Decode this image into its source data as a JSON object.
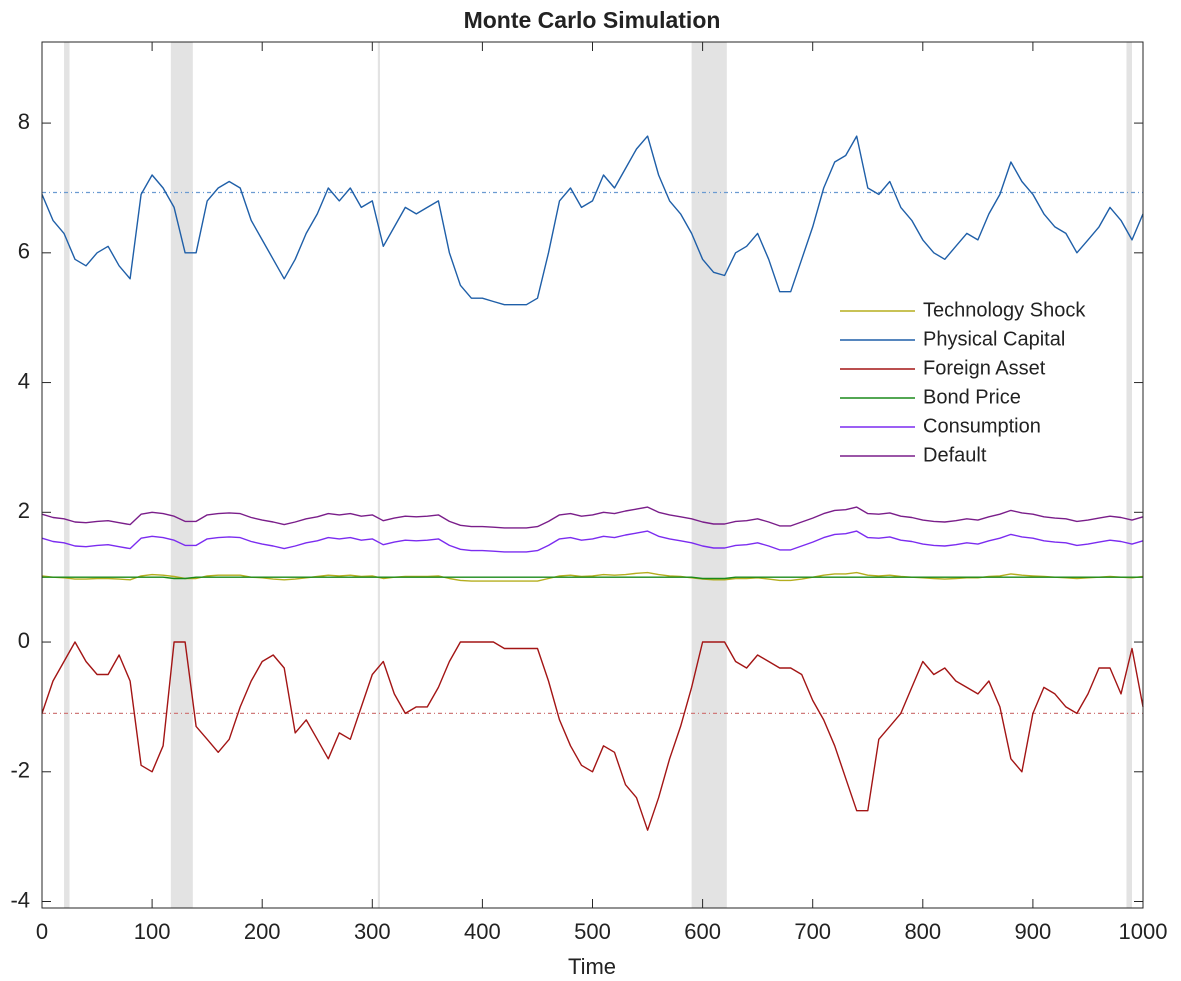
{
  "chart_data": {
    "type": "line",
    "title": "Monte Carlo Simulation",
    "x_label": "Time",
    "xlim": [
      0,
      1000
    ],
    "ylim": [
      -4.1,
      9.25
    ],
    "xticks": [
      0,
      100,
      200,
      300,
      400,
      500,
      600,
      700,
      800,
      900,
      1000
    ],
    "yticks": [
      -4,
      -2,
      0,
      2,
      4,
      6,
      8
    ],
    "legend_location": "east",
    "shade_color": "#e3e3e3",
    "shaded_regions": [
      [
        20,
        25
      ],
      [
        117,
        137
      ],
      [
        305,
        307
      ],
      [
        590,
        622
      ],
      [
        985,
        990
      ]
    ],
    "reference_lines": [
      {
        "value": 6.93,
        "color": "#6b9bd1"
      },
      {
        "value": -1.1,
        "color": "#d07a7a"
      }
    ],
    "x": [
      0,
      10,
      20,
      30,
      40,
      50,
      60,
      70,
      80,
      90,
      100,
      110,
      120,
      130,
      140,
      150,
      160,
      170,
      180,
      190,
      200,
      210,
      220,
      230,
      240,
      250,
      260,
      270,
      280,
      290,
      300,
      310,
      320,
      330,
      340,
      350,
      360,
      370,
      380,
      390,
      400,
      410,
      420,
      430,
      440,
      450,
      460,
      470,
      480,
      490,
      500,
      510,
      520,
      530,
      540,
      550,
      560,
      570,
      580,
      590,
      600,
      610,
      620,
      630,
      640,
      650,
      660,
      670,
      680,
      690,
      700,
      710,
      720,
      730,
      740,
      750,
      760,
      770,
      780,
      790,
      800,
      810,
      820,
      830,
      840,
      850,
      860,
      870,
      880,
      890,
      900,
      910,
      920,
      930,
      940,
      950,
      960,
      970,
      980,
      990,
      1000
    ],
    "series": [
      {
        "name": "Technology Shock",
        "color": "#b5ad1e",
        "values": [
          1.02,
          1.0,
          0.99,
          0.97,
          0.97,
          0.98,
          0.98,
          0.97,
          0.96,
          1.02,
          1.04,
          1.03,
          1.01,
          0.98,
          0.98,
          1.02,
          1.03,
          1.03,
          1.03,
          1.0,
          0.99,
          0.97,
          0.96,
          0.97,
          0.99,
          1.01,
          1.03,
          1.02,
          1.03,
          1.01,
          1.02,
          0.98,
          1.0,
          1.01,
          1.01,
          1.01,
          1.02,
          0.98,
          0.95,
          0.94,
          0.94,
          0.94,
          0.94,
          0.94,
          0.94,
          0.94,
          0.98,
          1.02,
          1.03,
          1.01,
          1.02,
          1.04,
          1.03,
          1.04,
          1.06,
          1.07,
          1.04,
          1.02,
          1.01,
          0.99,
          0.97,
          0.96,
          0.96,
          0.98,
          0.98,
          0.99,
          0.97,
          0.95,
          0.95,
          0.97,
          1.0,
          1.03,
          1.05,
          1.05,
          1.07,
          1.03,
          1.02,
          1.03,
          1.01,
          1.0,
          0.99,
          0.98,
          0.97,
          0.98,
          0.99,
          0.99,
          1.01,
          1.02,
          1.05,
          1.03,
          1.02,
          1.01,
          1.0,
          0.99,
          0.98,
          0.99,
          1.0,
          1.01,
          1.0,
          0.99,
          1.01
        ]
      },
      {
        "name": "Physical Capital",
        "color": "#1f5fa8",
        "values": [
          6.9,
          6.5,
          6.3,
          5.9,
          5.8,
          6.0,
          6.1,
          5.8,
          5.6,
          6.9,
          7.2,
          7.0,
          6.7,
          6.0,
          6.0,
          6.8,
          7.0,
          7.1,
          7.0,
          6.5,
          6.2,
          5.9,
          5.6,
          5.9,
          6.3,
          6.6,
          7.0,
          6.8,
          7.0,
          6.7,
          6.8,
          6.1,
          6.4,
          6.7,
          6.6,
          6.7,
          6.8,
          6.0,
          5.5,
          5.3,
          5.3,
          5.25,
          5.2,
          5.2,
          5.2,
          5.3,
          6.0,
          6.8,
          7.0,
          6.7,
          6.8,
          7.2,
          7.0,
          7.3,
          7.6,
          7.8,
          7.2,
          6.8,
          6.6,
          6.3,
          5.9,
          5.7,
          5.65,
          6.0,
          6.1,
          6.3,
          5.9,
          5.4,
          5.4,
          5.9,
          6.4,
          7.0,
          7.4,
          7.5,
          7.8,
          7.0,
          6.9,
          7.1,
          6.7,
          6.5,
          6.2,
          6.0,
          5.9,
          6.1,
          6.3,
          6.2,
          6.6,
          6.9,
          7.4,
          7.1,
          6.9,
          6.6,
          6.4,
          6.3,
          6.0,
          6.2,
          6.4,
          6.7,
          6.5,
          6.2,
          6.6
        ]
      },
      {
        "name": "Foreign Asset",
        "color": "#a31515",
        "values": [
          -1.1,
          -0.6,
          -0.3,
          0,
          -0.3,
          -0.5,
          -0.5,
          -0.2,
          -0.6,
          -1.9,
          -2.0,
          -1.6,
          0,
          0,
          -1.3,
          -1.5,
          -1.7,
          -1.5,
          -1.0,
          -0.6,
          -0.3,
          -0.2,
          -0.4,
          -1.4,
          -1.2,
          -1.5,
          -1.8,
          -1.4,
          -1.5,
          -1.0,
          -0.5,
          -0.3,
          -0.8,
          -1.1,
          -1.0,
          -1.0,
          -0.7,
          -0.3,
          0,
          0,
          0,
          0,
          -0.1,
          -0.1,
          -0.1,
          -0.1,
          -0.6,
          -1.2,
          -1.6,
          -1.9,
          -2.0,
          -1.6,
          -1.7,
          -2.2,
          -2.4,
          -2.9,
          -2.4,
          -1.8,
          -1.3,
          -0.7,
          0,
          0,
          0,
          -0.3,
          -0.4,
          -0.2,
          -0.3,
          -0.4,
          -0.4,
          -0.5,
          -0.9,
          -1.2,
          -1.6,
          -2.1,
          -2.6,
          -2.6,
          -1.5,
          -1.3,
          -1.1,
          -0.7,
          -0.3,
          -0.5,
          -0.4,
          -0.6,
          -0.7,
          -0.8,
          -0.6,
          -1.0,
          -1.8,
          -2.0,
          -1.1,
          -0.7,
          -0.8,
          -1.0,
          -1.1,
          -0.8,
          -0.4,
          -0.4,
          -0.8,
          -0.1,
          -1.0
        ]
      },
      {
        "name": "Bond Price",
        "color": "#1a8a1a",
        "values": [
          1,
          1,
          1,
          1,
          1,
          1,
          1,
          1,
          1,
          1,
          1,
          1,
          0.98,
          0.98,
          1,
          1,
          1,
          1,
          1,
          1,
          1,
          1,
          1,
          1,
          1,
          1,
          1,
          1,
          1,
          1,
          1,
          1,
          1,
          1,
          1,
          1,
          1,
          1,
          1,
          1,
          1,
          1,
          1,
          1,
          1,
          1,
          1,
          1,
          1,
          1,
          1,
          1,
          1,
          1,
          1,
          1,
          1,
          1,
          1,
          1,
          0.98,
          0.98,
          0.98,
          1,
          1,
          1,
          1,
          1,
          1,
          1,
          1,
          1,
          1,
          1,
          1,
          1,
          1,
          1,
          1,
          1,
          1,
          1,
          1,
          1,
          1,
          1,
          1,
          1,
          1,
          1,
          1,
          1,
          1,
          1,
          1,
          1,
          1,
          1,
          1,
          1,
          1
        ]
      },
      {
        "name": "Consumption",
        "color": "#7b2cf0",
        "values": [
          1.6,
          1.55,
          1.53,
          1.48,
          1.47,
          1.49,
          1.5,
          1.47,
          1.44,
          1.6,
          1.63,
          1.61,
          1.57,
          1.49,
          1.49,
          1.59,
          1.61,
          1.62,
          1.61,
          1.55,
          1.51,
          1.48,
          1.44,
          1.48,
          1.53,
          1.56,
          1.61,
          1.59,
          1.61,
          1.57,
          1.59,
          1.5,
          1.54,
          1.57,
          1.56,
          1.57,
          1.59,
          1.49,
          1.43,
          1.41,
          1.41,
          1.4,
          1.39,
          1.39,
          1.39,
          1.41,
          1.49,
          1.59,
          1.61,
          1.57,
          1.59,
          1.63,
          1.61,
          1.65,
          1.68,
          1.71,
          1.63,
          1.59,
          1.56,
          1.53,
          1.48,
          1.45,
          1.45,
          1.49,
          1.5,
          1.53,
          1.48,
          1.42,
          1.42,
          1.48,
          1.54,
          1.61,
          1.66,
          1.67,
          1.71,
          1.61,
          1.6,
          1.62,
          1.57,
          1.55,
          1.51,
          1.49,
          1.48,
          1.5,
          1.53,
          1.51,
          1.56,
          1.6,
          1.66,
          1.62,
          1.6,
          1.56,
          1.54,
          1.53,
          1.49,
          1.51,
          1.54,
          1.57,
          1.55,
          1.51,
          1.56
        ]
      },
      {
        "name": "Default",
        "color": "#7a1e8a",
        "values": [
          1.97,
          1.92,
          1.9,
          1.85,
          1.84,
          1.86,
          1.87,
          1.84,
          1.81,
          1.97,
          2.0,
          1.98,
          1.94,
          1.86,
          1.86,
          1.96,
          1.98,
          1.99,
          1.98,
          1.92,
          1.88,
          1.85,
          1.81,
          1.85,
          1.9,
          1.93,
          1.98,
          1.96,
          1.98,
          1.94,
          1.96,
          1.87,
          1.91,
          1.94,
          1.93,
          1.94,
          1.96,
          1.86,
          1.8,
          1.78,
          1.78,
          1.77,
          1.76,
          1.76,
          1.76,
          1.78,
          1.86,
          1.96,
          1.98,
          1.94,
          1.96,
          2.0,
          1.98,
          2.02,
          2.05,
          2.08,
          2.0,
          1.96,
          1.93,
          1.9,
          1.85,
          1.82,
          1.82,
          1.86,
          1.87,
          1.9,
          1.85,
          1.79,
          1.79,
          1.85,
          1.91,
          1.98,
          2.03,
          2.04,
          2.08,
          1.98,
          1.97,
          1.99,
          1.94,
          1.92,
          1.88,
          1.86,
          1.85,
          1.87,
          1.9,
          1.88,
          1.93,
          1.97,
          2.03,
          1.99,
          1.97,
          1.93,
          1.91,
          1.9,
          1.86,
          1.88,
          1.91,
          1.94,
          1.92,
          1.88,
          1.93
        ]
      }
    ]
  }
}
